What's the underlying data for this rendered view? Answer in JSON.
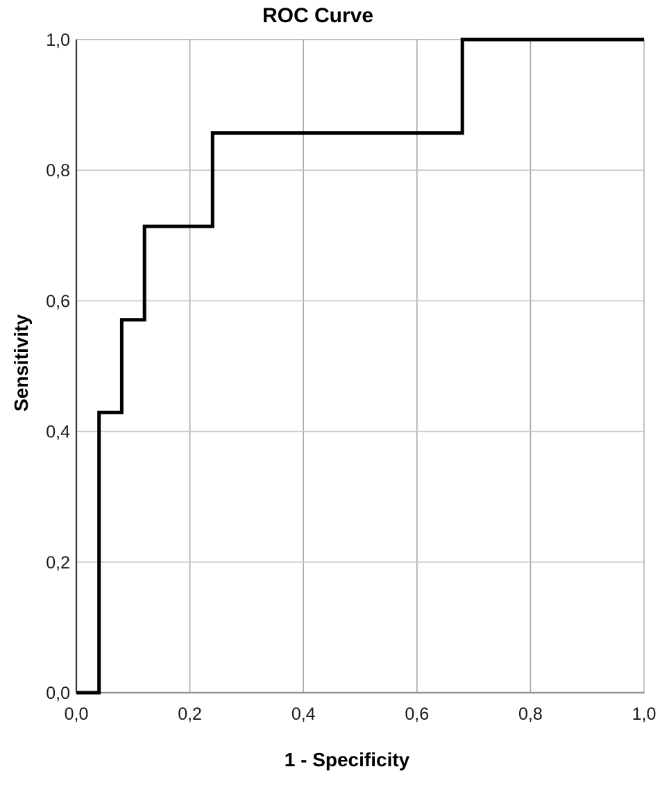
{
  "chart": {
    "title": "ROC Curve",
    "xlabel": "1 - Specificity",
    "ylabel": "Sensitivity"
  },
  "chart_data": {
    "type": "line",
    "subtype": "step",
    "title": "ROC Curve",
    "xlabel": "1 - Specificity",
    "ylabel": "Sensitivity",
    "xlim": [
      0.0,
      1.0
    ],
    "ylim": [
      0.0,
      1.0
    ],
    "grid": true,
    "legend": false,
    "x_tick_values": [
      0.0,
      0.2,
      0.4,
      0.6,
      0.8,
      1.0
    ],
    "x_tick_labels": [
      "0,0",
      "0,2",
      "0,4",
      "0,6",
      "0,8",
      "1,0"
    ],
    "y_tick_values": [
      0.0,
      0.2,
      0.4,
      0.6,
      0.8,
      1.0
    ],
    "y_tick_labels": [
      "0,0",
      "0,2",
      "0,4",
      "0,6",
      "0,8",
      "1,0"
    ],
    "series": [
      {
        "name": "ROC curve",
        "x": [
          0.0,
          0.04,
          0.04,
          0.08,
          0.08,
          0.12,
          0.12,
          0.24,
          0.24,
          0.68,
          0.68,
          1.0
        ],
        "y": [
          0.0,
          0.0,
          0.429,
          0.429,
          0.571,
          0.571,
          0.714,
          0.714,
          0.857,
          0.857,
          1.0,
          1.0
        ],
        "color": "#000000",
        "stroke_width": 5
      }
    ],
    "colors": {
      "background": "#ffffff",
      "grid_vertical": "#a6a6a6",
      "grid_horizontal": "#c7c7c7",
      "frame": "#c2c2c2",
      "axis_y": "#363636",
      "axis_x": "#949494",
      "text": "#1a1a1a",
      "title_text": "#000000"
    }
  }
}
